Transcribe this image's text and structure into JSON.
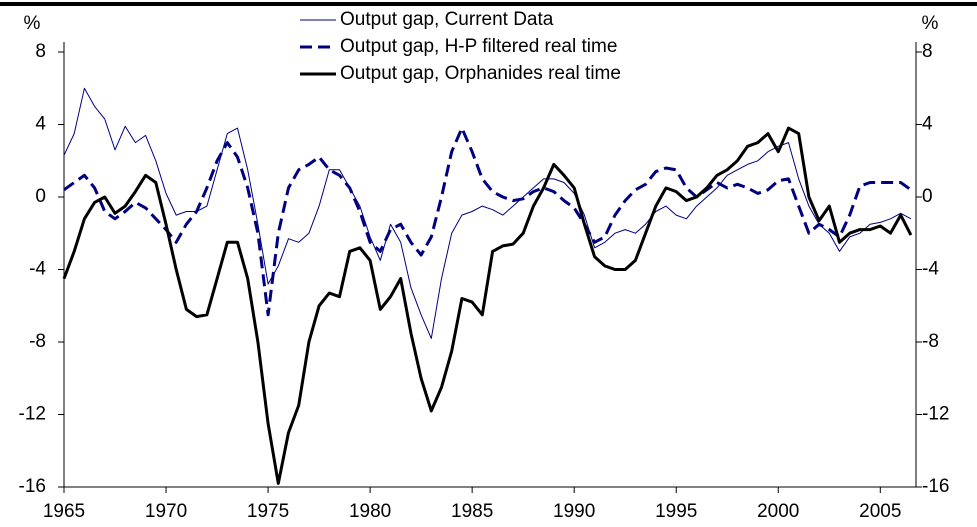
{
  "chart_data": {
    "type": "line",
    "y_label": "%",
    "y2_label": "%",
    "x": [
      1965,
      1965.5,
      1966,
      1966.5,
      1967,
      1967.5,
      1968,
      1968.5,
      1969,
      1969.5,
      1970,
      1970.5,
      1971,
      1971.5,
      1972,
      1972.5,
      1973,
      1973.5,
      1974,
      1974.5,
      1975,
      1975.5,
      1976,
      1976.5,
      1977,
      1977.5,
      1978,
      1978.5,
      1979,
      1979.5,
      1980,
      1980.5,
      1981,
      1981.5,
      1982,
      1982.5,
      1983,
      1983.5,
      1984,
      1984.5,
      1985,
      1985.5,
      1986,
      1986.5,
      1987,
      1987.5,
      1988,
      1988.5,
      1989,
      1989.5,
      1990,
      1990.5,
      1991,
      1991.5,
      1992,
      1992.5,
      1993,
      1993.5,
      1994,
      1994.5,
      1995,
      1995.5,
      1996,
      1996.5,
      1997,
      1997.5,
      1998,
      1998.5,
      1999,
      1999.5,
      2000,
      2000.5,
      2001,
      2001.5,
      2002,
      2002.5,
      2003,
      2003.5,
      2004,
      2004.5,
      2005,
      2005.5,
      2006,
      2006.5
    ],
    "series": [
      {
        "name": "Output gap, Current Data",
        "color": "#000080",
        "line_style": "solid",
        "linewidth": 1,
        "values": [
          2.3,
          3.5,
          6.0,
          5.0,
          4.3,
          2.6,
          3.9,
          3.0,
          3.4,
          2.0,
          0.2,
          -1.0,
          -0.8,
          -0.8,
          -0.5,
          1.5,
          3.5,
          3.8,
          1.5,
          -1.5,
          -4.8,
          -3.8,
          -2.3,
          -2.5,
          -2.0,
          -0.5,
          1.5,
          1.5,
          0.5,
          -0.5,
          -2.2,
          -3.5,
          -1.5,
          -2.5,
          -5.0,
          -6.5,
          -7.8,
          -4.5,
          -2.0,
          -1.0,
          -0.8,
          -0.5,
          -0.7,
          -1.0,
          -0.5,
          0,
          0.5,
          1.0,
          1.0,
          0.8,
          0.2,
          -1.0,
          -2.8,
          -2.5,
          -2.0,
          -1.8,
          -2.0,
          -1.5,
          -0.8,
          -0.5,
          -1.0,
          -1.2,
          -0.5,
          0,
          0.5,
          1.2,
          1.5,
          1.8,
          2.0,
          2.5,
          2.8,
          3.0,
          1.0,
          -0.5,
          -1.5,
          -2.0,
          -3.0,
          -2.2,
          -2.0,
          -1.5,
          -1.4,
          -1.2,
          -0.9,
          -1.2
        ]
      },
      {
        "name": "Output gap, H-P filtered real time",
        "color": "#000080",
        "line_style": "dashed",
        "linewidth": 3,
        "values": [
          0.4,
          0.8,
          1.2,
          0.5,
          -0.8,
          -1.2,
          -0.8,
          -0.3,
          -0.6,
          -1.2,
          -1.8,
          -2.5,
          -1.5,
          -0.8,
          0.5,
          2.0,
          3.0,
          2.2,
          0.5,
          -2.0,
          -6.5,
          -2.0,
          0.5,
          1.5,
          1.8,
          2.2,
          1.5,
          1.2,
          0.5,
          -0.8,
          -2.5,
          -3.0,
          -1.8,
          -1.5,
          -2.5,
          -3.2,
          -2.2,
          0,
          2.5,
          3.8,
          2.5,
          1.0,
          0.3,
          0,
          -0.2,
          -0.1,
          0.3,
          0.5,
          0.3,
          -0.2,
          -0.6,
          -1.5,
          -2.5,
          -2.2,
          -1.0,
          -0.2,
          0.4,
          0.7,
          1.4,
          1.6,
          1.5,
          0.5,
          0,
          0.4,
          0.8,
          0.5,
          0.7,
          0.5,
          0.2,
          0.4,
          0.9,
          1.0,
          -0.5,
          -2.0,
          -1.5,
          -1.8,
          -2.2,
          -1.0,
          0.6,
          0.8,
          0.8,
          0.8,
          0.8,
          0.4
        ]
      },
      {
        "name": "Output gap, Orphanides real time",
        "color": "#000000",
        "line_style": "solid",
        "linewidth": 3,
        "values": [
          -4.5,
          -3.0,
          -1.2,
          -0.3,
          0,
          -0.9,
          -0.5,
          0.3,
          1.2,
          0.8,
          -1.5,
          -4.0,
          -6.2,
          -6.6,
          -6.5,
          -4.5,
          -2.5,
          -2.5,
          -4.5,
          -8.0,
          -12.5,
          -15.8,
          -13.0,
          -11.5,
          -8.0,
          -6.0,
          -5.3,
          -5.5,
          -3.0,
          -2.8,
          -3.5,
          -6.2,
          -5.5,
          -4.5,
          -7.5,
          -10.0,
          -11.8,
          -10.5,
          -8.5,
          -5.6,
          -5.8,
          -6.5,
          -3.0,
          -2.7,
          -2.6,
          -2.0,
          -0.5,
          0.5,
          1.8,
          1.2,
          0.5,
          -1.5,
          -3.3,
          -3.8,
          -4.0,
          -4.0,
          -3.5,
          -2.0,
          -0.5,
          0.5,
          0.3,
          -0.2,
          0,
          0.5,
          1.2,
          1.5,
          2.0,
          2.8,
          3.0,
          3.5,
          2.5,
          3.8,
          3.5,
          0,
          -1.3,
          -0.5,
          -2.5,
          -2.0,
          -1.8,
          -1.8,
          -1.6,
          -2.0,
          -1.0,
          -2.1
        ]
      }
    ],
    "xlim": [
      1965,
      2006.75
    ],
    "xticks": [
      1965,
      1970,
      1975,
      1980,
      1985,
      1990,
      1995,
      2000,
      2005
    ],
    "ylim": [
      -16,
      8
    ],
    "yticks": [
      -16,
      -12,
      -8,
      -4,
      0,
      4,
      8
    ],
    "y2lim": [
      -16,
      8
    ],
    "y2ticks": [
      -16,
      -12,
      -8,
      -4,
      0,
      4,
      8
    ],
    "grid": false,
    "legend": "top"
  }
}
